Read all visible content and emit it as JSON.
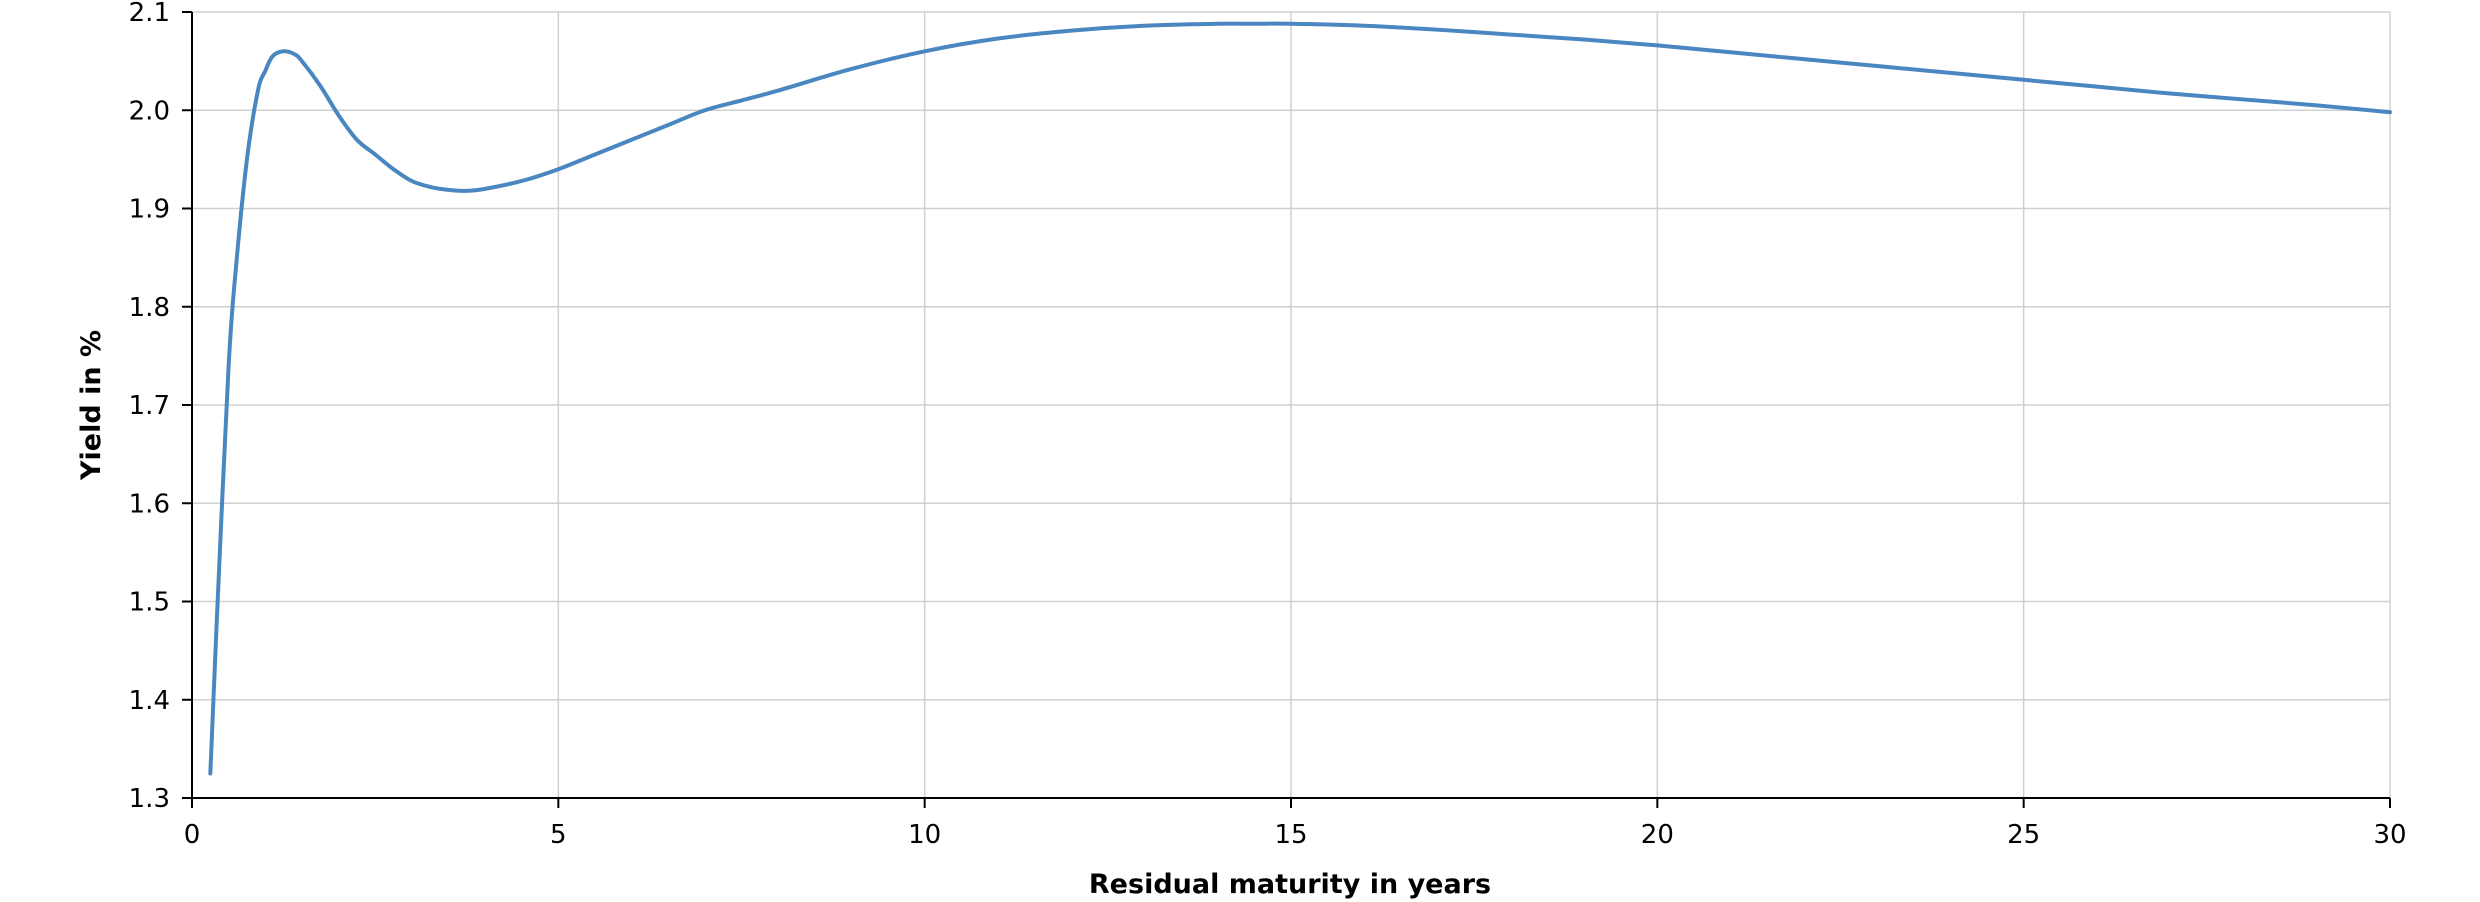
{
  "chart_data": {
    "type": "line",
    "title": "",
    "xlabel": "Residual maturity in years",
    "ylabel": "Yield in %",
    "xlim": [
      0,
      30
    ],
    "ylim": [
      1.3,
      2.1
    ],
    "x_ticks": [
      "0",
      "5",
      "10",
      "15",
      "20",
      "25",
      "30"
    ],
    "y_ticks": [
      "1.3",
      "1.4",
      "1.5",
      "1.6",
      "1.7",
      "1.8",
      "1.9",
      "2.0",
      "2.1"
    ],
    "grid": true,
    "legend": "none",
    "colors": {
      "line": "#4a86c0",
      "grid": "#d0d0d0",
      "axis": "#000000"
    },
    "series": [
      {
        "x": [
          0.25,
          0.35,
          0.5,
          0.6,
          0.75,
          0.9,
          1.0,
          1.1,
          1.25,
          1.4,
          1.5,
          1.75,
          2.0,
          2.25,
          2.5,
          2.75,
          3.0,
          3.25,
          3.5,
          3.75,
          4.0,
          4.5,
          5.0,
          5.5,
          6.0,
          6.5,
          7.0,
          7.5,
          8.0,
          9.0,
          10.0,
          11.0,
          12.0,
          13.0,
          14.0,
          14.5,
          15.0,
          16.0,
          17.0,
          18.0,
          19.0,
          20.0,
          21.0,
          22.0,
          23.0,
          24.0,
          25.0,
          26.0,
          27.0,
          28.0,
          29.0,
          30.0
        ],
        "y": [
          1.325,
          1.5,
          1.74,
          1.84,
          1.95,
          2.02,
          2.04,
          2.055,
          2.06,
          2.057,
          2.05,
          2.025,
          1.995,
          1.97,
          1.955,
          1.94,
          1.928,
          1.922,
          1.919,
          1.918,
          1.92,
          1.928,
          1.94,
          1.955,
          1.97,
          1.985,
          2.0,
          2.01,
          2.02,
          2.042,
          2.06,
          2.073,
          2.081,
          2.086,
          2.088,
          2.088,
          2.088,
          2.086,
          2.082,
          2.077,
          2.072,
          2.066,
          2.059,
          2.052,
          2.045,
          2.038,
          2.031,
          2.024,
          2.017,
          2.011,
          2.005,
          1.998
        ]
      }
    ]
  }
}
